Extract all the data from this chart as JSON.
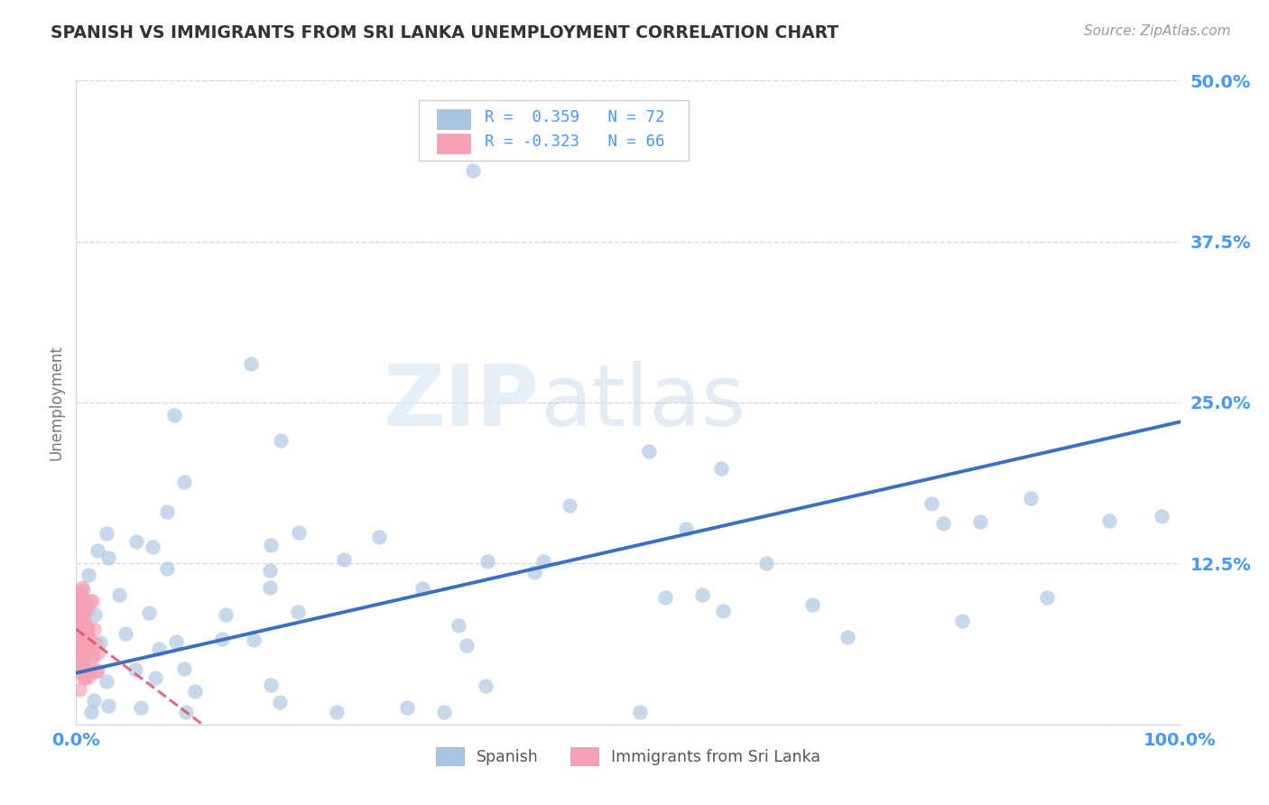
{
  "title": "SPANISH VS IMMIGRANTS FROM SRI LANKA UNEMPLOYMENT CORRELATION CHART",
  "source": "Source: ZipAtlas.com",
  "ylabel": "Unemployment",
  "xlim": [
    0,
    1.0
  ],
  "ylim": [
    0,
    0.5
  ],
  "xticks": [
    0.0,
    1.0
  ],
  "xticklabels": [
    "0.0%",
    "100.0%"
  ],
  "yticks": [
    0.0,
    0.125,
    0.25,
    0.375,
    0.5
  ],
  "yticklabels_right": [
    "",
    "12.5%",
    "25.0%",
    "37.5%",
    "50.0%"
  ],
  "blue_color": "#a8c4e0",
  "pink_color": "#f4a0b5",
  "blue_line_color": "#3a6fc4",
  "pink_line_color": "#e05070",
  "watermark_zip": "ZIP",
  "watermark_atlas": "atlas",
  "tick_color": "#4499ff",
  "grid_color": "#d0d8e8",
  "spine_color": "#d0d8e8"
}
